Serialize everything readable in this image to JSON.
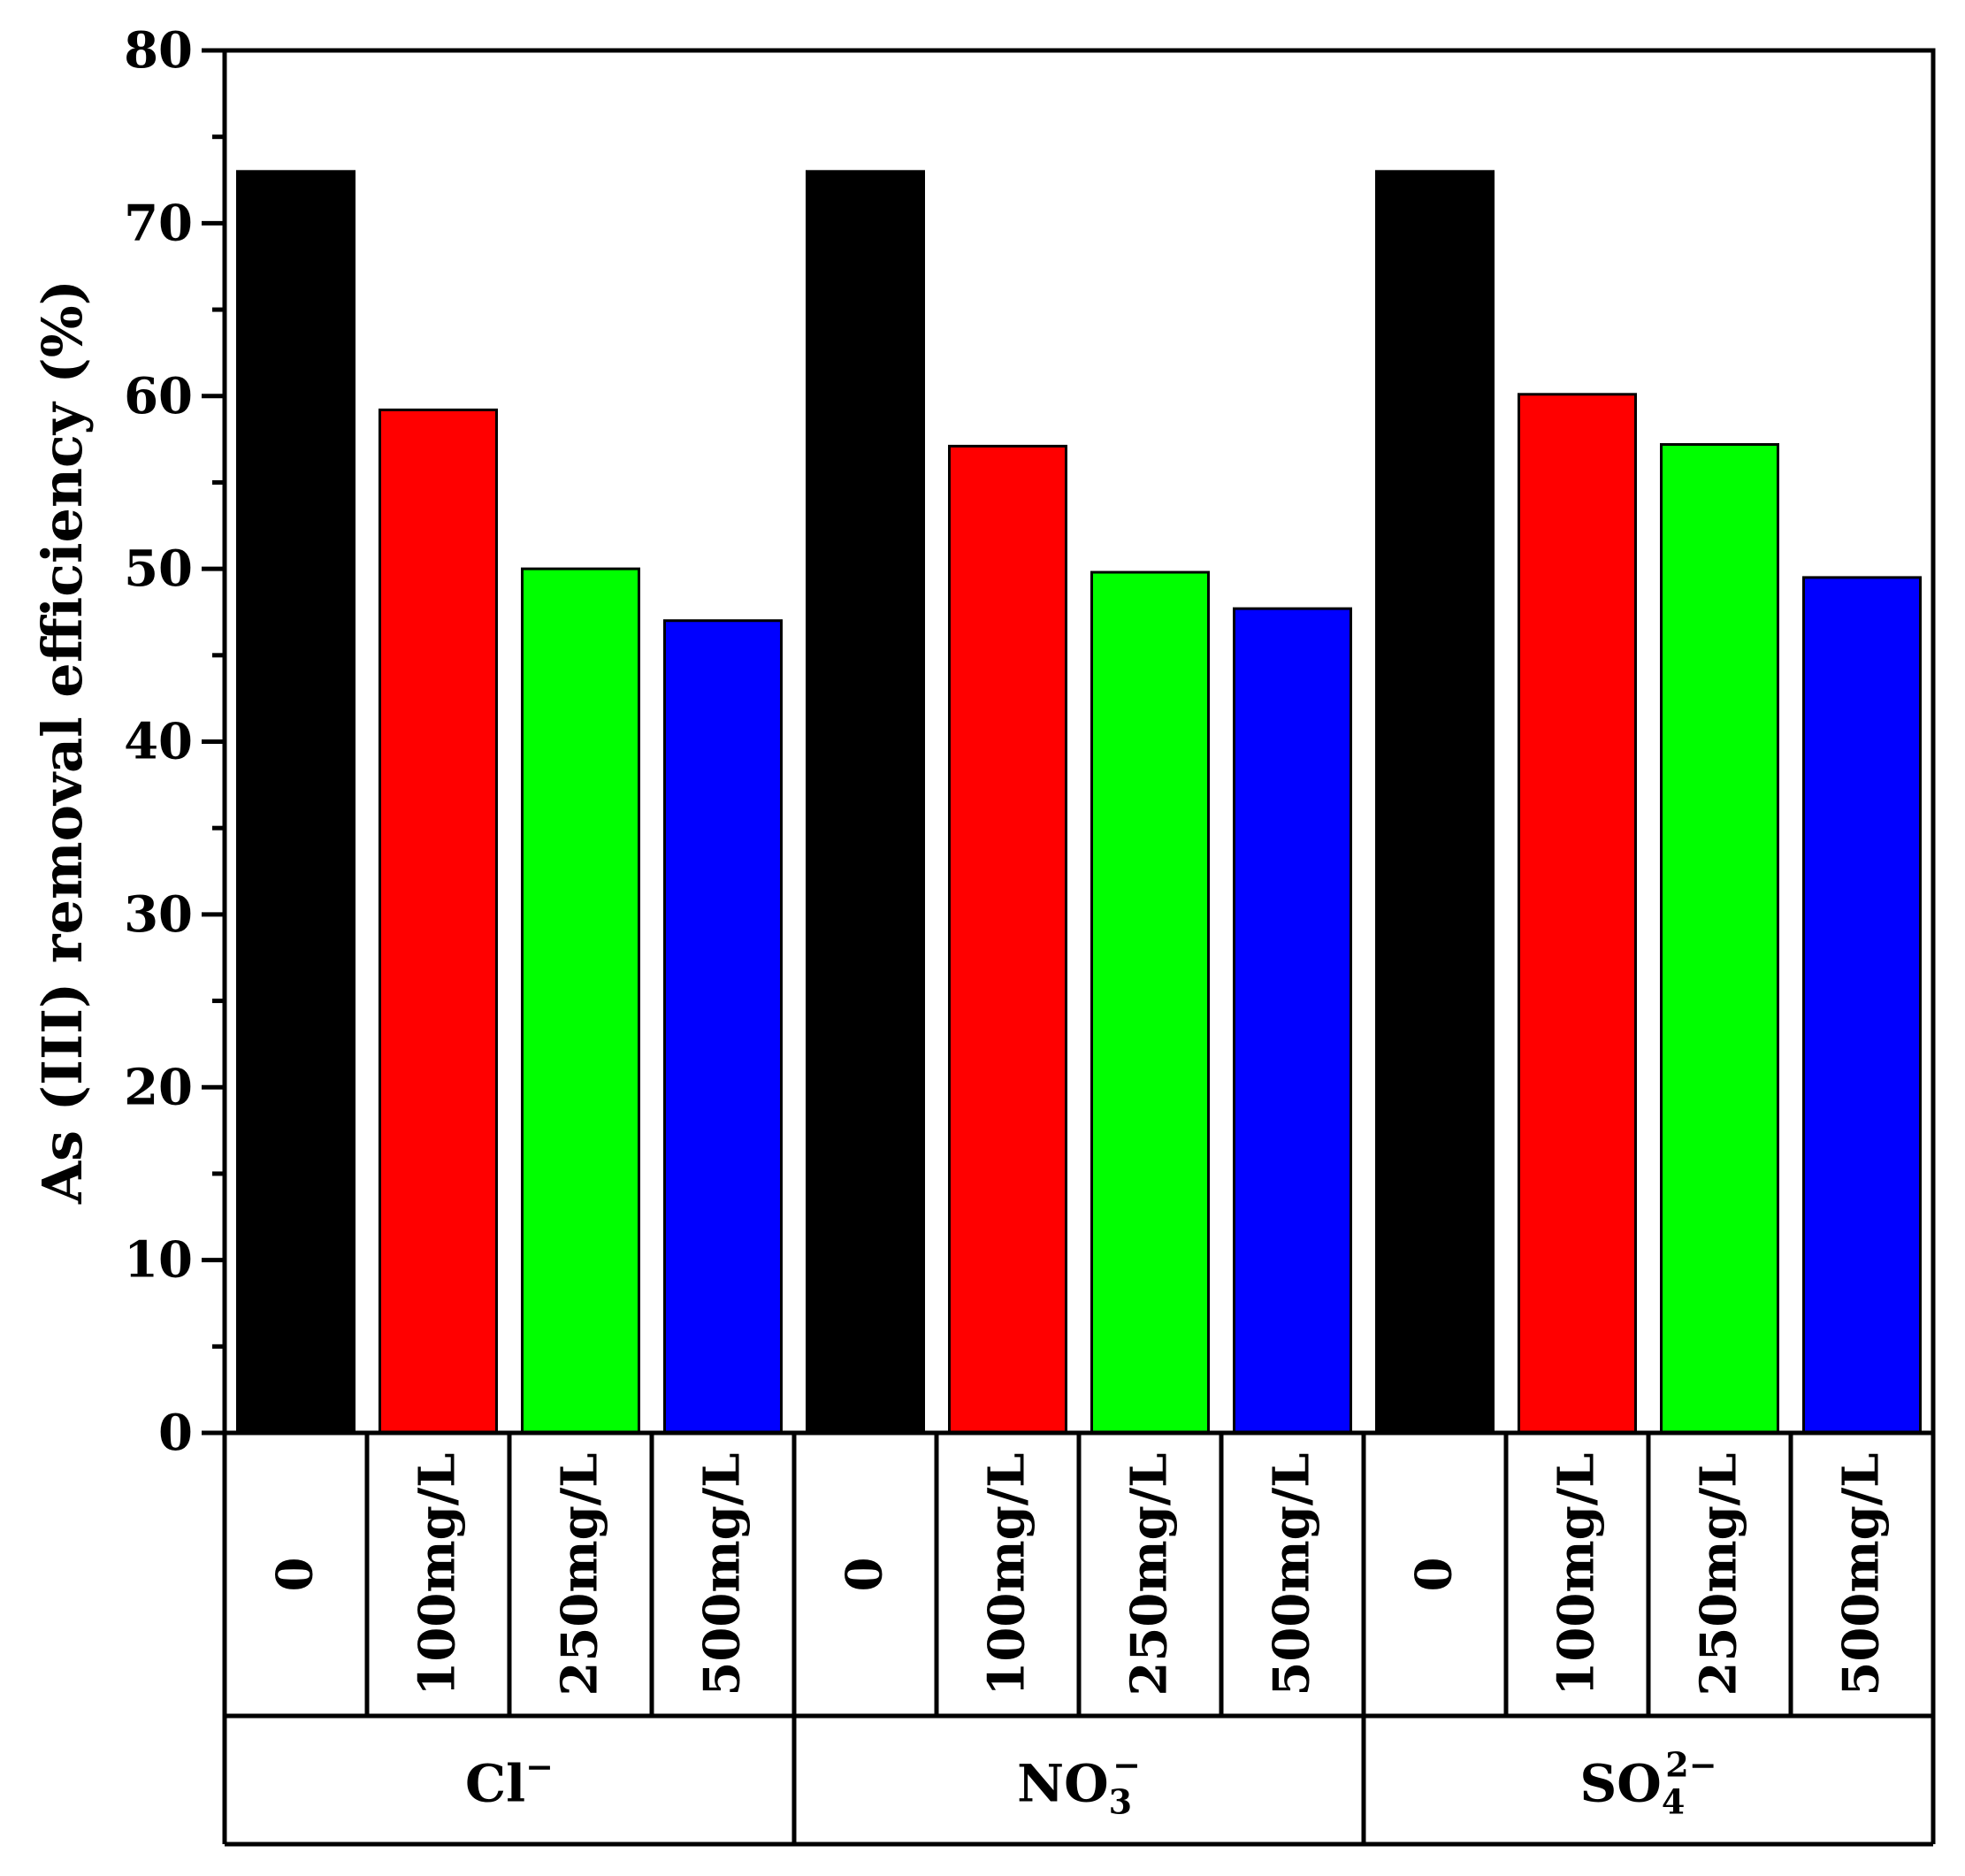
{
  "chart_data": {
    "type": "bar",
    "title": "",
    "xlabel": "",
    "ylabel": "As (III) removal efficiency (%)",
    "ylim": [
      0,
      80
    ],
    "yticks": [
      0,
      10,
      20,
      30,
      40,
      50,
      60,
      70,
      80
    ],
    "grid": false,
    "legend": "none",
    "categories": [
      "0",
      "100mg/L",
      "250mg/L",
      "500mg/L"
    ],
    "category_colors": [
      "#000000",
      "#ff0000",
      "#00ff00",
      "#0000ff"
    ],
    "groups": [
      {
        "label": "Cl",
        "superscript": "−",
        "subscript": "",
        "values": [
          73,
          59.2,
          50,
          47
        ]
      },
      {
        "label": "NO",
        "superscript": "−",
        "subscript": "3",
        "values": [
          73,
          57.1,
          49.8,
          47.7
        ]
      },
      {
        "label": "SO",
        "superscript": "2−",
        "subscript": "4",
        "values": [
          73,
          60.1,
          57.2,
          49.5
        ]
      }
    ]
  }
}
